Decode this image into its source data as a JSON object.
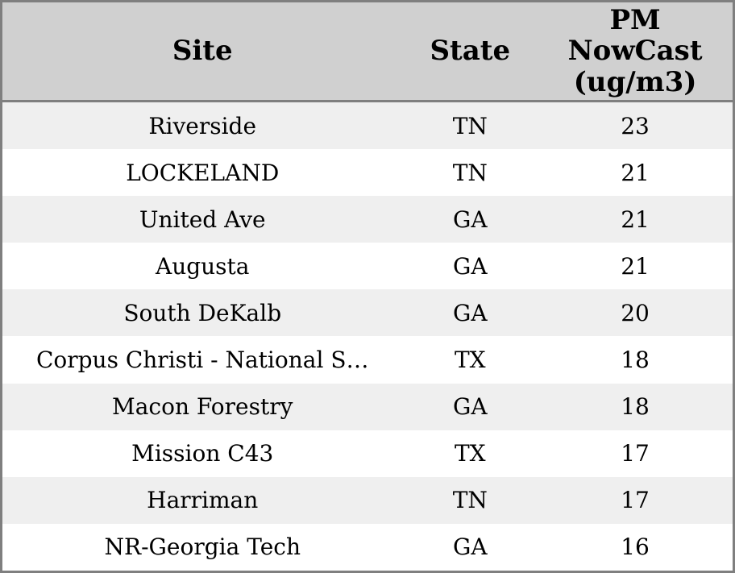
{
  "chart_data": {
    "type": "table",
    "title": "",
    "columns": [
      "Site",
      "State",
      "PM NowCast (ug/m3)"
    ],
    "rows": [
      [
        "Riverside",
        "TN",
        23
      ],
      [
        "LOCKELAND",
        "TN",
        21
      ],
      [
        "United Ave",
        "GA",
        21
      ],
      [
        "Augusta",
        "GA",
        21
      ],
      [
        "South DeKalb",
        "GA",
        20
      ],
      [
        "Corpus Christi - National S…",
        "TX",
        18
      ],
      [
        "Macon Forestry",
        "GA",
        18
      ],
      [
        "Mission C43",
        "TX",
        17
      ],
      [
        "Harriman",
        "TN",
        17
      ],
      [
        "NR-Georgia Tech",
        "GA",
        16
      ]
    ],
    "layout": {
      "header_bg": "#d0d0d0",
      "border_color": "#7f7f7f",
      "row_stripe_odd": "#efefef",
      "row_stripe_even": "#ffffff",
      "text_color": "#000000"
    }
  }
}
